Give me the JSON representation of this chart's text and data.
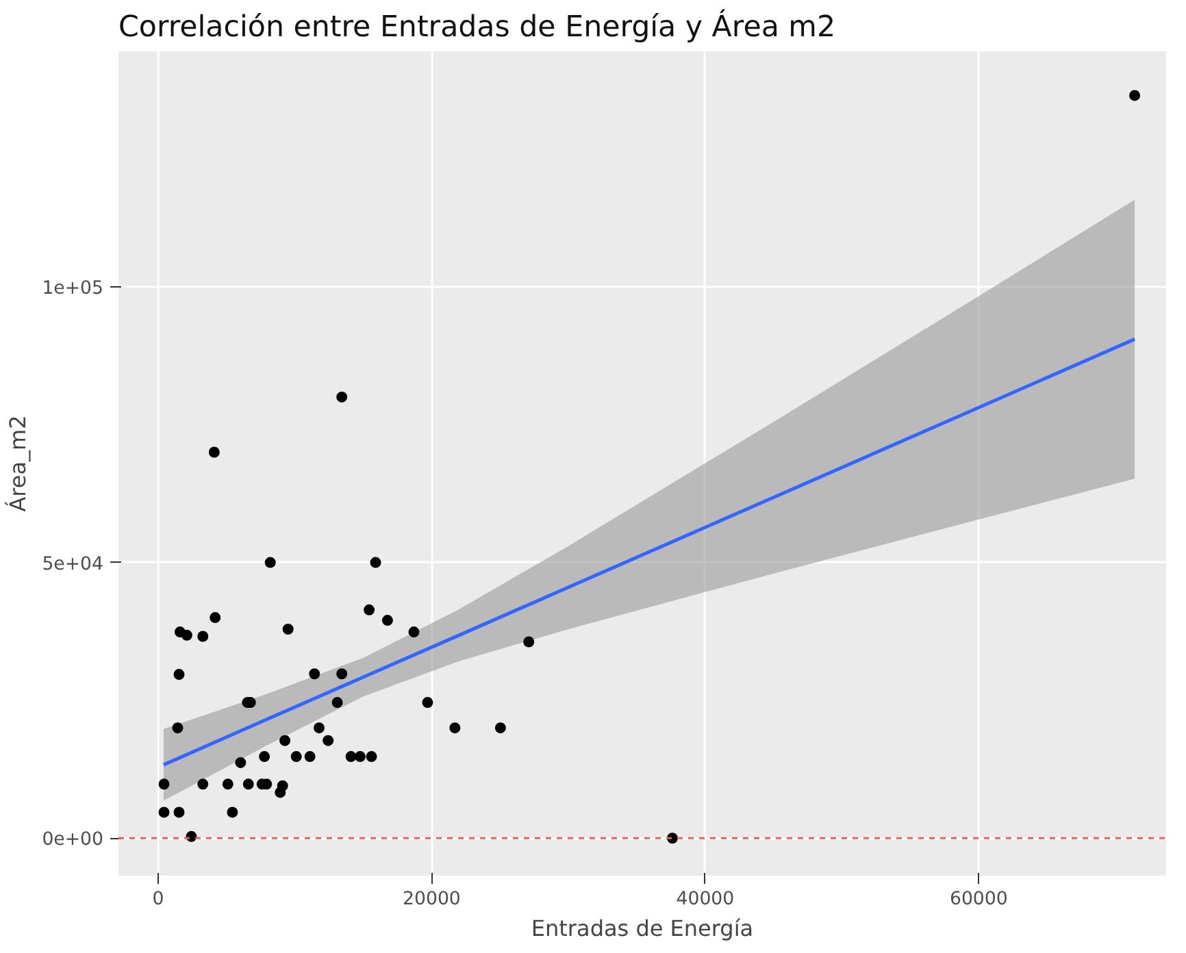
{
  "chart_data": {
    "type": "scatter",
    "title": "Correlación entre Entradas de Energía y Área m2",
    "xlabel": "Entradas de Energía",
    "ylabel": "Área_m2",
    "xlim": [
      -2900,
      73700
    ],
    "ylim": [
      -6800,
      142700
    ],
    "xticks": [
      0,
      20000,
      40000,
      60000
    ],
    "yticks": [
      {
        "value": 0,
        "label": "0e+00"
      },
      {
        "value": 50000,
        "label": "5e+04"
      },
      {
        "value": 100000,
        "label": "1e+05"
      }
    ],
    "grid": true,
    "series": [
      {
        "type": "line",
        "color": "#3366ff",
        "line_style": "solid",
        "marker": "none",
        "x": [
          400,
          8000,
          15000,
          22000,
          30000,
          45000,
          60000,
          71400
        ],
        "values": [
          13300,
          21600,
          29200,
          36800,
          45500,
          61800,
          78100,
          90500
        ],
        "lower": [
          6800,
          16900,
          25700,
          32100,
          37900,
          48000,
          57800,
          65200
        ],
        "upper": [
          19800,
          26200,
          32700,
          41500,
          53000,
          75500,
          98300,
          115800
        ]
      },
      {
        "color": "#000000",
        "marker": "circle",
        "x": [
          13430,
          4100,
          8200,
          15900,
          4170,
          1600,
          2100,
          3270,
          9500,
          15430,
          16770,
          18700,
          1530,
          11430,
          13430,
          6530,
          6750,
          19700,
          13100,
          1430,
          11770,
          12430,
          9270,
          21700,
          25030,
          27100,
          7770,
          10100,
          11100,
          14100,
          14770,
          15600,
          6030,
          3270,
          5100,
          6600,
          7600,
          7930,
          9100,
          8930,
          430,
          1530,
          5430,
          2430,
          430,
          37600,
          71400
        ],
        "values": [
          80000,
          70000,
          50000,
          50000,
          40000,
          37400,
          36800,
          36600,
          37900,
          41400,
          39500,
          37400,
          29700,
          29800,
          29800,
          24600,
          24600,
          24600,
          24600,
          20000,
          20000,
          17700,
          17700,
          20000,
          20000,
          35600,
          14800,
          14800,
          14800,
          14800,
          14800,
          14800,
          13700,
          9800,
          9800,
          9800,
          9800,
          9800,
          9500,
          8300,
          4700,
          4700,
          4700,
          300,
          9800,
          0,
          134700
        ]
      }
    ],
    "ref_lines": [
      {
        "axis": "y",
        "value": 0,
        "color": "#e06666",
        "line_style": "dashed"
      }
    ]
  }
}
